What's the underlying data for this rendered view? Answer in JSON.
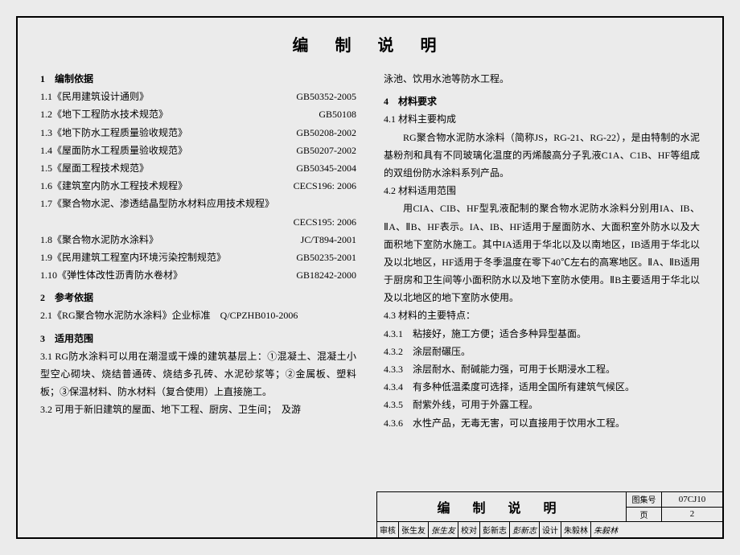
{
  "title": "编 制 说 明",
  "left": {
    "s1": {
      "head": "1　编制依据",
      "items": [
        {
          "l": "1.1《民用建筑设计通则》",
          "r": "GB50352-2005"
        },
        {
          "l": "1.2《地下工程防水技术规范》",
          "r": "GB50108"
        },
        {
          "l": "1.3《地下防水工程质量验收规范》",
          "r": "GB50208-2002"
        },
        {
          "l": "1.4《屋面防水工程质量验收规范》",
          "r": "GB50207-2002"
        },
        {
          "l": "1.5《屋面工程技术规范》",
          "r": "GB50345-2004"
        },
        {
          "l": "1.6《建筑室内防水工程技术规程》",
          "r": "CECS196: 2006"
        },
        {
          "l": "1.7《聚合物水泥、渗透结晶型防水材料应用技术规程》",
          "r": ""
        },
        {
          "l": "",
          "r": "CECS195: 2006"
        },
        {
          "l": "1.8《聚合物水泥防水涂料》",
          "r": "JC/T894-2001"
        },
        {
          "l": "1.9《民用建筑工程室内环境污染控制规范》",
          "r": "GB50235-2001"
        },
        {
          "l": "1.10《弹性体改性沥青防水卷材》",
          "r": "GB18242-2000"
        }
      ]
    },
    "s2": {
      "head": "2　参考依据",
      "line": "2.1《RG聚合物水泥防水涂料》企业标准　Q/CPZHB010-2006"
    },
    "s3": {
      "head": "3　适用范围",
      "p1": "3.1 RG防水涂料可以用在潮湿或干燥的建筑基层上：①混凝土、混凝土小型空心砌块、烧结普通砖、烧结多孔砖、水泥砂浆等；②金属板、塑料板；③保温材料、防水材料（复合使用）上直接施工。",
      "p2": "3.2 可用于新旧建筑的屋面、地下工程、厨房、卫生间；　及游"
    }
  },
  "right": {
    "cont": "泳池、饮用水池等防水工程。",
    "s4": {
      "head": "4　材料要求",
      "h41": "4.1 材料主要构成",
      "p41": "RG聚合物水泥防水涂料（简称JS，RG-21、RG-22），是由特制的水泥基粉剂和具有不同玻璃化温度的丙烯酸高分子乳液C1A、C1B、HF等组成的双组份防水涂料系列产品。",
      "h42": "4.2 材料适用范围",
      "p42": "用CIA、CIB、HF型乳液配制的聚合物水泥防水涂料分别用IA、IB、ⅡA、ⅡB、HF表示。IA、IB、HF适用于屋面防水、大面积室外防水以及大面积地下室防水施工。其中IA适用于华北以及以南地区，IB适用于华北以及以北地区，HF适用于冬季温度在零下40℃左右的高寒地区。ⅡA、ⅡB适用于厨房和卫生间等小面积防水以及地下室防水使用。ⅡB主要适用于华北以及以北地区的地下室防水使用。",
      "h43": "4.3 材料的主要特点：",
      "i431": "4.3.1　粘接好，施工方便；适合多种异型基面。",
      "i432": "4.3.2　涂层耐碾压。",
      "i433": "4.3.3　涂层耐水、耐碱能力强，可用于长期浸水工程。",
      "i434": "4.3.4　有多种低温柔度可选择，适用全国所有建筑气候区。",
      "i435": "4.3.5　耐紫外线，可用于外露工程。",
      "i436": "4.3.6　水性产品，无毒无害，可以直接用于饮用水工程。"
    }
  },
  "footer": {
    "title": "编 制 说 明",
    "albumLabel": "图集号",
    "albumValue": "07CJ10",
    "pageLabel": "页",
    "pageValue": "2",
    "credits": [
      "审核",
      "张生友",
      "张生友",
      "校对",
      "彭新志",
      "彭新志",
      "设计",
      "朱毅林",
      "朱毅林"
    ]
  }
}
